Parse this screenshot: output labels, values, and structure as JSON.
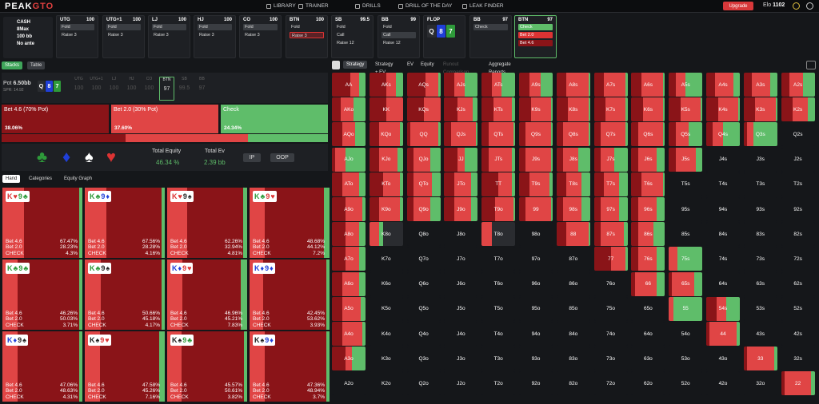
{
  "nav": {
    "logo_a": "PEAK",
    "logo_b": "GTO",
    "items": [
      "LIBRARY",
      "TRAINER",
      "DRILLS",
      "DRILL OF THE DAY",
      "LEAK FINDER"
    ],
    "upgrade": "Upgrade",
    "elo_label": "Elo",
    "elo_value": "1102"
  },
  "game": {
    "type": "CASH",
    "max": "8Max",
    "stack": "100 bb",
    "ante": "No ante"
  },
  "positions": [
    {
      "name": "UTG",
      "stack": "100",
      "acts": [
        {
          "t": "Fold",
          "s": "gray"
        },
        {
          "t": "Raise 3",
          "s": "plain"
        }
      ]
    },
    {
      "name": "UTG+1",
      "stack": "100",
      "acts": [
        {
          "t": "Fold",
          "s": "gray"
        },
        {
          "t": "Raise 3",
          "s": "plain"
        }
      ]
    },
    {
      "name": "LJ",
      "stack": "100",
      "acts": [
        {
          "t": "Fold",
          "s": "gray"
        },
        {
          "t": "Raise 3",
          "s": "plain"
        }
      ]
    },
    {
      "name": "HJ",
      "stack": "100",
      "acts": [
        {
          "t": "Fold",
          "s": "gray"
        },
        {
          "t": "Raise 3",
          "s": "plain"
        }
      ]
    },
    {
      "name": "CO",
      "stack": "100",
      "acts": [
        {
          "t": "Fold",
          "s": "gray"
        },
        {
          "t": "Raise 3",
          "s": "plain"
        }
      ]
    },
    {
      "name": "BTN",
      "stack": "100",
      "acts": [
        {
          "t": "Fold",
          "s": "plain"
        },
        {
          "t": "Raise 3",
          "s": "red"
        }
      ]
    },
    {
      "name": "SB",
      "stack": "99.5",
      "acts": [
        {
          "t": "Fold",
          "s": "plain"
        },
        {
          "t": "Call",
          "s": "plain"
        },
        {
          "t": "Raise 12",
          "s": "plain"
        }
      ]
    },
    {
      "name": "BB",
      "stack": "99",
      "acts": [
        {
          "t": "Fold",
          "s": "plain"
        },
        {
          "t": "Call",
          "s": "gray"
        },
        {
          "t": "Raise 12",
          "s": "plain"
        }
      ]
    }
  ],
  "flop": {
    "label": "FLOP",
    "cards": [
      {
        "r": "Q",
        "c": "#2a2c30"
      },
      {
        "r": "8",
        "c": "#1f3fd8"
      },
      {
        "r": "7",
        "c": "#2e9a3a"
      }
    ]
  },
  "bbpos": {
    "name": "BB",
    "stack": "97",
    "acts": [
      {
        "t": "Check",
        "s": "gray"
      }
    ]
  },
  "btnpos": {
    "name": "BTN",
    "stack": "97",
    "acts": [
      {
        "t": "Check",
        "s": "green"
      },
      {
        "t": "Bet 2.0",
        "s": "r1"
      },
      {
        "t": "Bet 4.6",
        "s": "r2"
      }
    ]
  },
  "left_tabs": [
    "Stacks",
    "Table"
  ],
  "pot": {
    "label": "Pot",
    "value": "6.50bb",
    "spr": "SPR: 14.92",
    "mini": [
      {
        "n": "UTG",
        "v": "100"
      },
      {
        "n": "UTG+1",
        "v": "100"
      },
      {
        "n": "LJ",
        "v": "100"
      },
      {
        "n": "HJ",
        "v": "100"
      },
      {
        "n": "CO",
        "v": "100"
      },
      {
        "n": "BTN",
        "v": "97"
      },
      {
        "n": "SB",
        "v": "99.5"
      },
      {
        "n": "BB",
        "v": "97"
      }
    ]
  },
  "actions": [
    {
      "label": "Bet 4.6 (70% Pot)",
      "pct": "38.06%",
      "color": "#8a1418",
      "freq": 38.06
    },
    {
      "label": "Bet 2.0 (30% Pot)",
      "pct": "37.60%",
      "color": "#e04545",
      "freq": 37.6
    },
    {
      "label": "Check",
      "pct": "24.34%",
      "color": "#5fbd6a",
      "freq": 24.34
    }
  ],
  "equity": {
    "total_equity_label": "Total Equity",
    "total_equity": "46.34 %",
    "total_ev_label": "Total Ev",
    "total_ev": "2.39 bb",
    "ip": "IP",
    "oop": "OOP"
  },
  "hand_tabs": [
    "Hand",
    "Categories",
    "Equity Graph"
  ],
  "combos": [
    {
      "c": [
        [
          "K",
          "♥",
          "#d33"
        ],
        [
          "9",
          "♣",
          "#2e9a3a"
        ]
      ],
      "b46": "67.47%",
      "b20": "28.23%",
      "ch": "4.3%",
      "f": [
        67.47,
        28.23,
        4.3
      ]
    },
    {
      "c": [
        [
          "K",
          "♣",
          "#2e9a3a"
        ],
        [
          "9",
          "♦",
          "#1f3fd8"
        ]
      ],
      "b46": "67.56%",
      "b20": "28.28%",
      "ch": "4.16%",
      "f": [
        67.56,
        28.28,
        4.16
      ]
    },
    {
      "c": [
        [
          "K",
          "♥",
          "#d33"
        ],
        [
          "9",
          "♠",
          "#222"
        ]
      ],
      "b46": "62.26%",
      "b20": "32.94%",
      "ch": "4.81%",
      "f": [
        62.26,
        32.94,
        4.81
      ]
    },
    {
      "c": [
        [
          "K",
          "♣",
          "#2e9a3a"
        ],
        [
          "9",
          "♥",
          "#d33"
        ]
      ],
      "b46": "48.68%",
      "b20": "44.12%",
      "ch": "7.2%",
      "f": [
        48.68,
        44.12,
        7.2
      ]
    },
    {
      "c": [
        [
          "K",
          "♣",
          "#2e9a3a"
        ],
        [
          "9",
          "♣",
          "#2e9a3a"
        ]
      ],
      "b46": "46.26%",
      "b20": "50.03%",
      "ch": "3.71%",
      "f": [
        46.26,
        50.03,
        3.71
      ]
    },
    {
      "c": [
        [
          "K",
          "♣",
          "#2e9a3a"
        ],
        [
          "9",
          "♠",
          "#222"
        ]
      ],
      "b46": "50.66%",
      "b20": "45.18%",
      "ch": "4.17%",
      "f": [
        50.66,
        45.18,
        4.17
      ]
    },
    {
      "c": [
        [
          "K",
          "♦",
          "#1f3fd8"
        ],
        [
          "9",
          "♥",
          "#d33"
        ]
      ],
      "b46": "46.96%",
      "b20": "45.21%",
      "ch": "7.83%",
      "f": [
        46.96,
        45.21,
        7.83
      ]
    },
    {
      "c": [
        [
          "K",
          "♦",
          "#1f3fd8"
        ],
        [
          "9",
          "♦",
          "#1f3fd8"
        ]
      ],
      "b46": "42.45%",
      "b20": "53.62%",
      "ch": "3.93%",
      "f": [
        42.45,
        53.62,
        3.93
      ]
    },
    {
      "c": [
        [
          "K",
          "♦",
          "#1f3fd8"
        ],
        [
          "9",
          "♠",
          "#222"
        ]
      ],
      "b46": "47.06%",
      "b20": "48.63%",
      "ch": "4.31%",
      "f": [
        47.06,
        48.63,
        4.31
      ]
    },
    {
      "c": [
        [
          "K",
          "♠",
          "#222"
        ],
        [
          "9",
          "♥",
          "#d33"
        ]
      ],
      "b46": "47.58%",
      "b20": "45.26%",
      "ch": "7.16%",
      "f": [
        47.58,
        45.26,
        7.16
      ]
    },
    {
      "c": [
        [
          "K",
          "♠",
          "#222"
        ],
        [
          "9",
          "♣",
          "#2e9a3a"
        ]
      ],
      "b46": "45.57%",
      "b20": "50.61%",
      "ch": "3.82%",
      "f": [
        45.57,
        50.61,
        3.82
      ]
    },
    {
      "c": [
        [
          "K",
          "♠",
          "#222"
        ],
        [
          "9",
          "♦",
          "#1f3fd8"
        ]
      ],
      "b46": "47.36%",
      "b20": "48.94%",
      "ch": "3.7%",
      "f": [
        47.36,
        48.94,
        3.7
      ]
    }
  ],
  "combo_labels": {
    "b46": "Bet 4.6",
    "b20": "Bet 2.0",
    "ch": "CHECK"
  },
  "right_tabs": [
    "Strategy",
    "Strategy + EV",
    "EV",
    "Equity",
    "Runout Comparison",
    "Aggregate Reports"
  ],
  "ranks": [
    "A",
    "K",
    "Q",
    "J",
    "T",
    "9",
    "8",
    "7",
    "6",
    "5",
    "4",
    "3",
    "2"
  ],
  "grid_freq": {
    "AA": [
      55,
      25,
      20
    ],
    "AKs": [
      50,
      30,
      20
    ],
    "AQs": [
      55,
      40,
      5
    ],
    "AJs": [
      30,
      30,
      40
    ],
    "ATs": [
      30,
      30,
      40
    ],
    "A9s": [
      30,
      35,
      35
    ],
    "A8s": [
      30,
      65,
      5
    ],
    "A7s": [
      30,
      65,
      5
    ],
    "A6s": [
      30,
      65,
      5
    ],
    "A5s": [
      20,
      30,
      50
    ],
    "A4s": [
      25,
      55,
      20
    ],
    "A3s": [
      25,
      55,
      20
    ],
    "A2s": [
      25,
      40,
      35
    ],
    "AKo": [
      25,
      40,
      35
    ],
    "KK": [
      50,
      50,
      0
    ],
    "KQs": [
      50,
      50,
      0
    ],
    "KJs": [
      40,
      45,
      15
    ],
    "KTs": [
      35,
      55,
      10
    ],
    "K9s": [
      35,
      60,
      5
    ],
    "K8s": [
      35,
      60,
      5
    ],
    "K7s": [
      35,
      60,
      5
    ],
    "K6s": [
      35,
      60,
      5
    ],
    "K5s": [
      35,
      60,
      5
    ],
    "K4s": [
      35,
      60,
      5
    ],
    "K3s": [
      35,
      60,
      5
    ],
    "K2s": [
      35,
      45,
      20
    ],
    "AQo": [
      30,
      40,
      30
    ],
    "KQo": [
      30,
      60,
      10
    ],
    "QQ": [
      10,
      85,
      5
    ],
    "QJs": [
      20,
      75,
      5
    ],
    "QTs": [
      20,
      75,
      5
    ],
    "Q9s": [
      20,
      75,
      5
    ],
    "Q8s": [
      20,
      75,
      5
    ],
    "Q7s": [
      20,
      75,
      5
    ],
    "Q6s": [
      20,
      75,
      5
    ],
    "Q5s": [
      20,
      40,
      40
    ],
    "Q4s": [
      20,
      30,
      50
    ],
    "Q3s": [
      10,
      20,
      70
    ],
    "Q2s": [
      0,
      0,
      0
    ],
    "AJo": [
      10,
      30,
      60
    ],
    "KJo": [
      30,
      55,
      15
    ],
    "QJo": [
      20,
      50,
      30
    ],
    "JJ": [
      40,
      20,
      40
    ],
    "JTs": [
      20,
      70,
      10
    ],
    "J9s": [
      20,
      75,
      5
    ],
    "J8s": [
      20,
      45,
      35
    ],
    "J7s": [
      20,
      40,
      40
    ],
    "J6s": [
      20,
      55,
      25
    ],
    "J5s": [
      20,
      60,
      20
    ],
    "J4s": [
      0,
      0,
      0
    ],
    "J3s": [
      0,
      0,
      0
    ],
    "J2s": [
      0,
      0,
      0
    ],
    "ATo": [
      30,
      50,
      20
    ],
    "KTo": [
      40,
      50,
      10
    ],
    "QTo": [
      20,
      55,
      25
    ],
    "JTo": [
      30,
      50,
      20
    ],
    "TT": [
      50,
      40,
      10
    ],
    "T9s": [
      30,
      60,
      10
    ],
    "T8s": [
      30,
      45,
      25
    ],
    "T7s": [
      30,
      45,
      25
    ],
    "T6s": [
      30,
      65,
      5
    ],
    "T5s": [
      0,
      0,
      0
    ],
    "T4s": [
      0,
      0,
      0
    ],
    "T3s": [
      0,
      0,
      0
    ],
    "T2s": [
      0,
      0,
      0
    ],
    "A9o": [
      40,
      50,
      10
    ],
    "K9o": [
      30,
      60,
      10
    ],
    "Q9o": [
      20,
      50,
      30
    ],
    "J9o": [
      30,
      50,
      20
    ],
    "T9o": [
      40,
      55,
      5
    ],
    "99": [
      20,
      75,
      5
    ],
    "98s": [
      20,
      55,
      25
    ],
    "97s": [
      20,
      55,
      25
    ],
    "96s": [
      20,
      55,
      25
    ],
    "95s": [
      0,
      0,
      0
    ],
    "94s": [
      0,
      0,
      0
    ],
    "93s": [
      0,
      0,
      0
    ],
    "92s": [
      0,
      0,
      0
    ],
    "A8o": [
      40,
      40,
      20
    ],
    "K8o": [
      0,
      30,
      10
    ],
    "Q8o": [
      0,
      0,
      0
    ],
    "J8o": [
      0,
      0,
      0
    ],
    "T8o": [
      0,
      30,
      0
    ],
    "98o": [
      0,
      0,
      0
    ],
    "88": [
      30,
      65,
      5
    ],
    "87s": [
      20,
      70,
      10
    ],
    "86s": [
      20,
      45,
      35
    ],
    "85s": [
      0,
      0,
      0
    ],
    "84s": [
      0,
      0,
      0
    ],
    "83s": [
      0,
      0,
      0
    ],
    "82s": [
      0,
      0,
      0
    ],
    "A7o": [
      40,
      40,
      20
    ],
    "K7o": [
      0,
      0,
      0
    ],
    "Q7o": [
      0,
      0,
      0
    ],
    "J7o": [
      0,
      0,
      0
    ],
    "T7o": [
      0,
      0,
      0
    ],
    "97o": [
      0,
      0,
      0
    ],
    "87o": [
      0,
      0,
      0
    ],
    "77": [
      50,
      45,
      5
    ],
    "76s": [
      20,
      55,
      25
    ],
    "75s": [
      0,
      25,
      75
    ],
    "74s": [
      0,
      0,
      0
    ],
    "73s": [
      0,
      0,
      0
    ],
    "72s": [
      0,
      0,
      0
    ],
    "A6o": [
      30,
      50,
      20
    ],
    "K6o": [
      0,
      0,
      0
    ],
    "Q6o": [
      0,
      0,
      0
    ],
    "J6o": [
      0,
      0,
      0
    ],
    "T6o": [
      0,
      0,
      0
    ],
    "96o": [
      0,
      0,
      0
    ],
    "86o": [
      0,
      0,
      0
    ],
    "76o": [
      0,
      0,
      0
    ],
    "66": [
      10,
      65,
      25
    ],
    "65s": [
      10,
      65,
      25
    ],
    "64s": [
      0,
      0,
      0
    ],
    "63s": [
      0,
      0,
      0
    ],
    "62s": [
      0,
      0,
      0
    ],
    "A5o": [
      30,
      55,
      15
    ],
    "K5o": [
      0,
      0,
      0
    ],
    "Q5o": [
      0,
      0,
      0
    ],
    "J5o": [
      0,
      0,
      0
    ],
    "T5o": [
      0,
      0,
      0
    ],
    "95o": [
      0,
      0,
      0
    ],
    "85o": [
      0,
      0,
      0
    ],
    "75o": [
      0,
      0,
      0
    ],
    "65o": [
      0,
      0,
      0
    ],
    "55": [
      0,
      15,
      85
    ],
    "54s": [
      30,
      30,
      40
    ],
    "53s": [
      0,
      0,
      0
    ],
    "52s": [
      0,
      0,
      0
    ],
    "A4o": [
      30,
      60,
      10
    ],
    "K4o": [
      0,
      0,
      0
    ],
    "Q4o": [
      0,
      0,
      0
    ],
    "J4o": [
      0,
      0,
      0
    ],
    "T4o": [
      0,
      0,
      0
    ],
    "94o": [
      0,
      0,
      0
    ],
    "84o": [
      0,
      0,
      0
    ],
    "74o": [
      0,
      0,
      0
    ],
    "64o": [
      0,
      0,
      0
    ],
    "54o": [
      0,
      0,
      0
    ],
    "44": [
      10,
      80,
      10
    ],
    "43s": [
      0,
      0,
      0
    ],
    "42s": [
      0,
      0,
      0
    ],
    "A3o": [
      40,
      20,
      40
    ],
    "K3o": [
      0,
      0,
      0
    ],
    "Q3o": [
      0,
      0,
      0
    ],
    "J3o": [
      0,
      0,
      0
    ],
    "T3o": [
      0,
      0,
      0
    ],
    "93o": [
      0,
      0,
      0
    ],
    "83o": [
      0,
      0,
      0
    ],
    "73o": [
      0,
      0,
      0
    ],
    "63o": [
      0,
      0,
      0
    ],
    "53o": [
      0,
      0,
      0
    ],
    "43o": [
      0,
      0,
      0
    ],
    "33": [
      10,
      80,
      10
    ],
    "32s": [
      0,
      0,
      0
    ],
    "A2o": [
      0,
      0,
      0
    ],
    "K2o": [
      0,
      0,
      0
    ],
    "Q2o": [
      0,
      0,
      0
    ],
    "J2o": [
      0,
      0,
      0
    ],
    "T2o": [
      0,
      0,
      0
    ],
    "92o": [
      0,
      0,
      0
    ],
    "82o": [
      0,
      0,
      0
    ],
    "72o": [
      0,
      0,
      0
    ],
    "62o": [
      0,
      0,
      0
    ],
    "52o": [
      0,
      0,
      0
    ],
    "42o": [
      0,
      0,
      0
    ],
    "32o": [
      0,
      0,
      0
    ],
    "22": [
      10,
      80,
      10
    ]
  }
}
